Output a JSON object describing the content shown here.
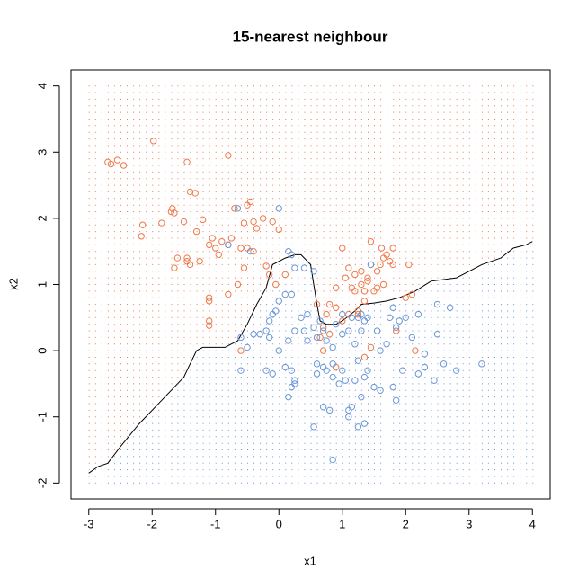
{
  "chart_data": {
    "type": "scatter",
    "title": "15-nearest neighbour",
    "xlabel": "x1",
    "ylabel": "x2",
    "xlim": [
      -3.28,
      4.28
    ],
    "ylim": [
      -2.24,
      4.24
    ],
    "xticks": [
      -3,
      -2,
      -1,
      0,
      1,
      2,
      3,
      4
    ],
    "yticks": [
      -2,
      -1,
      0,
      1,
      2,
      3,
      4
    ],
    "grid_step": 0.1,
    "series": [
      {
        "color": "#f0794a",
        "x": [
          -2.7,
          -2.65,
          -2.55,
          -2.45,
          -1.98,
          -1.45,
          -1.4,
          -1.32,
          -0.8,
          -2.15,
          -2.17,
          -1.85,
          -1.7,
          -1.68,
          -1.65,
          -1.5,
          -1.2,
          -1.05,
          -1.1,
          -0.9,
          -0.8,
          -0.7,
          -0.55,
          -0.45,
          -0.5,
          -0.4,
          -0.35,
          -0.25,
          -0.1,
          0.0,
          -1.3,
          -1.6,
          -1.65,
          -1.45,
          -1.4,
          -1.25,
          -1.0,
          -0.95,
          -0.75,
          -0.6,
          -0.5,
          -0.4,
          -0.55,
          -0.2,
          -0.15,
          -0.05,
          0.1,
          -0.8,
          -0.65,
          -1.1,
          -1.1,
          -1.1,
          -1.1,
          -0.6,
          -1.45,
          0.6,
          0.7,
          0.75,
          0.8,
          0.9,
          1.0,
          1.05,
          1.1,
          1.15,
          1.2,
          1.2,
          1.3,
          1.3,
          1.35,
          1.35,
          1.4,
          1.45,
          1.45,
          1.55,
          1.6,
          1.62,
          1.65,
          1.7,
          1.75,
          1.8,
          1.8,
          1.65,
          1.55,
          1.5,
          1.4,
          1.25,
          1.1,
          1.0,
          0.8,
          0.65,
          0.9,
          0.7,
          0.9,
          1.35,
          1.45,
          1.85,
          2.0,
          2.1,
          2.05,
          2.15,
          1.25
        ],
        "y": [
          2.85,
          2.82,
          2.88,
          2.8,
          3.17,
          2.85,
          2.4,
          2.38,
          2.95,
          1.9,
          1.73,
          1.93,
          2.1,
          2.15,
          2.08,
          1.95,
          1.98,
          1.7,
          1.6,
          1.65,
          1.6,
          2.15,
          1.93,
          2.25,
          2.2,
          1.95,
          1.85,
          2.0,
          1.95,
          1.83,
          1.8,
          1.4,
          1.25,
          1.4,
          1.3,
          1.35,
          1.55,
          1.45,
          1.7,
          1.55,
          1.55,
          1.5,
          1.25,
          1.28,
          1.15,
          1.0,
          1.15,
          0.85,
          1.0,
          0.8,
          0.75,
          0.45,
          0.38,
          0.0,
          1.35,
          0.7,
          0.35,
          0.55,
          0.7,
          0.65,
          1.55,
          1.1,
          1.25,
          0.95,
          0.9,
          1.15,
          1.2,
          1.0,
          0.9,
          0.75,
          1.1,
          1.3,
          1.65,
          1.2,
          1.3,
          1.55,
          1.4,
          1.45,
          1.35,
          1.3,
          1.55,
          1.0,
          0.95,
          0.9,
          1.05,
          0.6,
          0.55,
          0.45,
          0.25,
          0.2,
          0.95,
          0.0,
          -0.25,
          -0.1,
          0.05,
          0.3,
          0.8,
          0.85,
          1.3,
          0.0,
          0.55
        ]
      },
      {
        "color": "#6a96d8",
        "x": [
          0.0,
          -0.65,
          -0.8,
          -0.45,
          0.15,
          0.2,
          0.25,
          0.4,
          0.55,
          1.45,
          0.1,
          0.2,
          -0.1,
          -0.05,
          0.0,
          -0.15,
          -0.2,
          -0.15,
          -0.3,
          -0.4,
          -0.6,
          -0.5,
          0.0,
          0.15,
          0.25,
          0.35,
          0.4,
          0.45,
          0.45,
          0.55,
          0.6,
          0.65,
          0.7,
          0.75,
          0.85,
          0.9,
          1.0,
          1.1,
          1.15,
          1.2,
          1.25,
          1.3,
          1.35,
          1.4,
          1.55,
          1.6,
          1.7,
          1.75,
          1.8,
          1.85,
          1.9,
          2.0,
          2.1,
          2.2,
          2.3,
          2.5,
          2.5,
          2.7,
          2.6,
          2.8,
          3.2,
          2.45,
          2.3,
          2.2,
          1.95,
          1.85,
          1.8,
          1.6,
          1.35,
          1.4,
          1.25,
          1.2,
          1.05,
          0.95,
          0.85,
          0.75,
          0.85,
          0.7,
          0.6,
          0.25,
          0.25,
          0.2,
          0.15,
          0.2,
          0.1,
          -0.1,
          -0.2,
          -0.6,
          0.6,
          0.55,
          0.7,
          0.8,
          0.85,
          1.1,
          1.1,
          1.25,
          1.35,
          1.15,
          1.3,
          1.0,
          1.5,
          1.0,
          1.3
        ],
        "y": [
          2.15,
          2.15,
          1.6,
          1.5,
          1.5,
          1.45,
          1.25,
          1.25,
          1.2,
          1.3,
          0.85,
          0.85,
          0.55,
          0.6,
          0.75,
          0.45,
          0.3,
          0.2,
          0.25,
          0.25,
          0.2,
          0.05,
          0.0,
          0.15,
          0.3,
          0.5,
          0.3,
          0.15,
          0.55,
          0.35,
          0.2,
          0.45,
          0.3,
          0.15,
          0.05,
          0.4,
          0.55,
          0.3,
          0.5,
          0.1,
          0.5,
          0.55,
          0.45,
          0.5,
          0.3,
          0.0,
          0.1,
          0.5,
          0.65,
          0.35,
          0.45,
          0.5,
          0.2,
          0.55,
          -0.05,
          0.25,
          0.7,
          0.65,
          -0.2,
          -0.3,
          -0.2,
          -0.45,
          -0.25,
          -0.35,
          -0.3,
          -0.75,
          -0.55,
          -0.6,
          -0.4,
          -0.3,
          -0.15,
          -0.45,
          -0.45,
          -0.5,
          -0.4,
          -0.3,
          -0.2,
          -0.25,
          -0.35,
          -0.5,
          -0.45,
          -0.55,
          -0.7,
          -0.3,
          -0.25,
          -0.35,
          -0.3,
          -0.3,
          -0.2,
          -1.15,
          -0.85,
          -0.9,
          -1.65,
          -0.9,
          -1.0,
          -1.15,
          -1.1,
          -0.85,
          -0.7,
          -0.3,
          -0.55,
          0.25,
          0.3
        ]
      }
    ],
    "boundary": {
      "color": "#000000",
      "x": [
        -3,
        -2.85,
        -2.7,
        -2.5,
        -2.2,
        -1.95,
        -1.7,
        -1.5,
        -1.4,
        -1.3,
        -1.2,
        -0.85,
        -0.65,
        -0.5,
        -0.35,
        -0.2,
        -0.1,
        0.1,
        0.25,
        0.35,
        0.5,
        0.55,
        0.6,
        0.65,
        0.75,
        0.9,
        1.0,
        1.2,
        1.3,
        1.5,
        1.7,
        1.9,
        2.15,
        2.4,
        2.8,
        3.0,
        3.2,
        3.5,
        3.7,
        3.9,
        4
      ],
      "y": [
        -1.85,
        -1.75,
        -1.7,
        -1.45,
        -1.1,
        -0.85,
        -0.6,
        -0.4,
        -0.2,
        0.0,
        0.05,
        0.05,
        0.15,
        0.4,
        0.7,
        0.95,
        1.3,
        1.4,
        1.45,
        1.45,
        1.3,
        1.0,
        0.7,
        0.45,
        0.4,
        0.4,
        0.45,
        0.6,
        0.7,
        0.72,
        0.75,
        0.8,
        0.9,
        1.05,
        1.1,
        1.2,
        1.3,
        1.4,
        1.55,
        1.6,
        1.65
      ]
    }
  }
}
